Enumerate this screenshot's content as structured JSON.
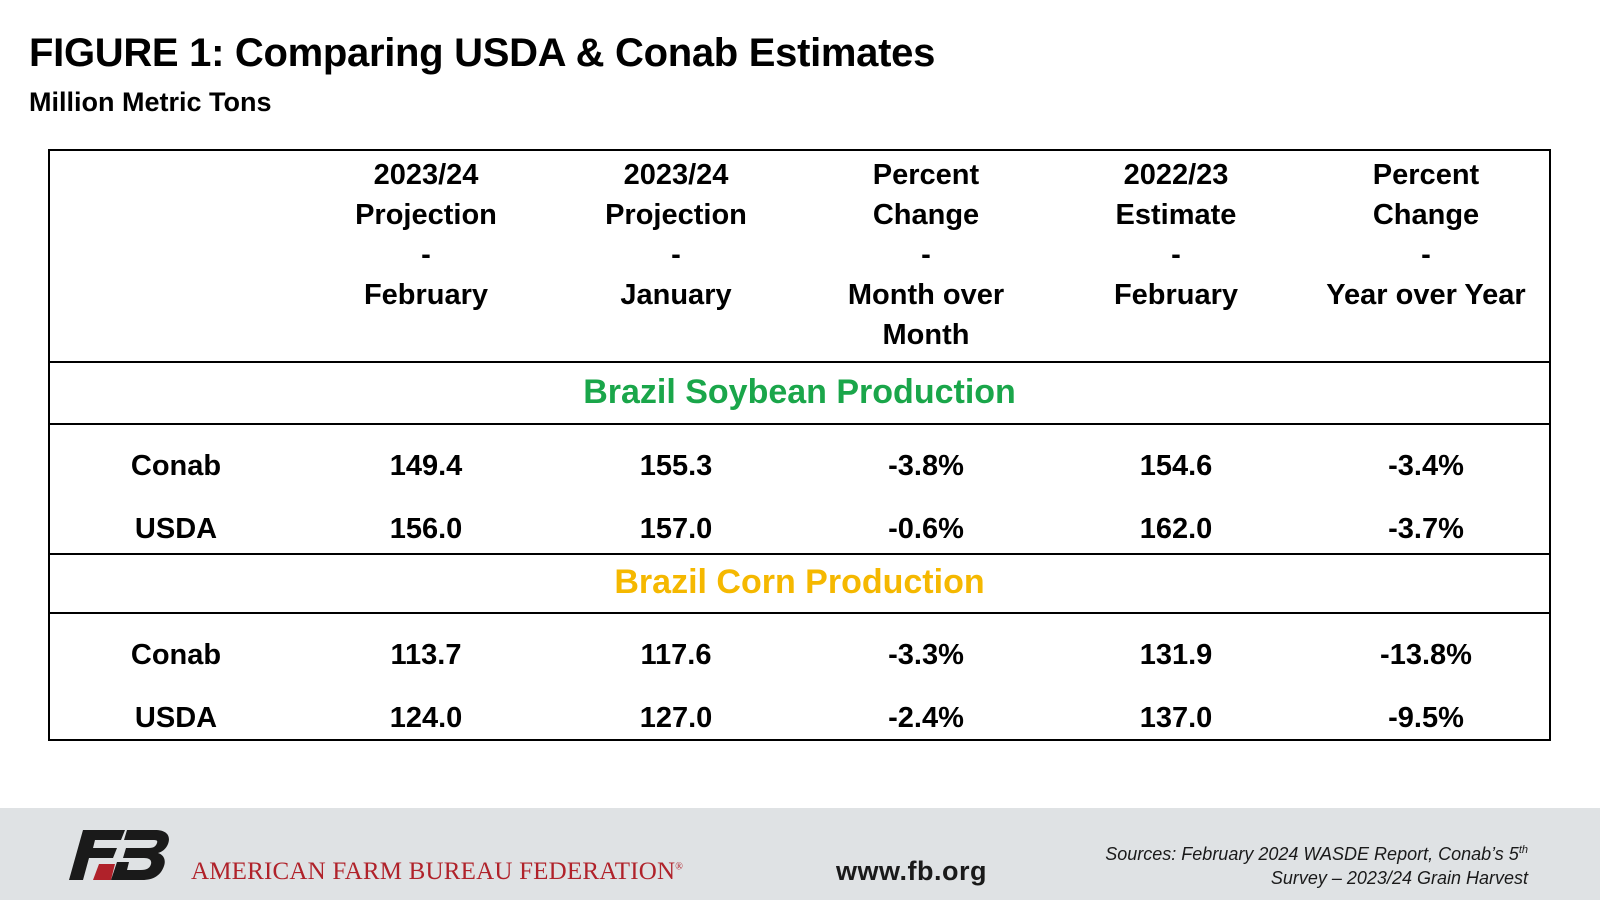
{
  "title": "FIGURE 1: Comparing USDA & Conab Estimates",
  "subtitle": "Million Metric Tons",
  "table": {
    "headers": [
      {
        "line1": "2023/24",
        "line2": "Projection",
        "sep": "-",
        "line3": "February",
        "line4": ""
      },
      {
        "line1": "2023/24",
        "line2": "Projection",
        "sep": "-",
        "line3": "January",
        "line4": ""
      },
      {
        "line1": "Percent",
        "line2": "Change",
        "sep": "-",
        "line3": "Month over",
        "line4": "Month"
      },
      {
        "line1": "2022/23",
        "line2": "Estimate",
        "sep": "-",
        "line3": "February",
        "line4": ""
      },
      {
        "line1": "Percent",
        "line2": "Change",
        "sep": "-",
        "line3": "Year over Year",
        "line4": ""
      }
    ],
    "sections": [
      {
        "title": "Brazil Soybean Production",
        "color": "#1aa64a",
        "rows": [
          {
            "label": "Conab",
            "values": [
              "149.4",
              "155.3",
              "-3.8%",
              "154.6",
              "-3.4%"
            ]
          },
          {
            "label": "USDA",
            "values": [
              "156.0",
              "157.0",
              "-0.6%",
              "162.0",
              "-3.7%"
            ]
          }
        ]
      },
      {
        "title": "Brazil Corn Production",
        "color": "#f5b800",
        "rows": [
          {
            "label": "Conab",
            "values": [
              "113.7",
              "117.6",
              "-3.3%",
              "131.9",
              "-13.8%"
            ]
          },
          {
            "label": "USDA",
            "values": [
              "124.0",
              "127.0",
              "-2.4%",
              "137.0",
              "-9.5%"
            ]
          }
        ]
      }
    ]
  },
  "footer": {
    "logo_text": "FB",
    "org_name": "AMERICAN FARM BUREAU FEDERATION",
    "org_mark": "®",
    "website": "www.fb.org",
    "sources_line1": "Sources: February 2024 WASDE Report, Conab’s 5",
    "sources_sup": "th",
    "sources_line2": "Survey – 2023/24 Grain Harvest"
  },
  "colors": {
    "soybean_green": "#1aa64a",
    "corn_gold": "#f5b800",
    "afbf_red": "#b0222a",
    "footer_bg": "#dfe2e4"
  }
}
